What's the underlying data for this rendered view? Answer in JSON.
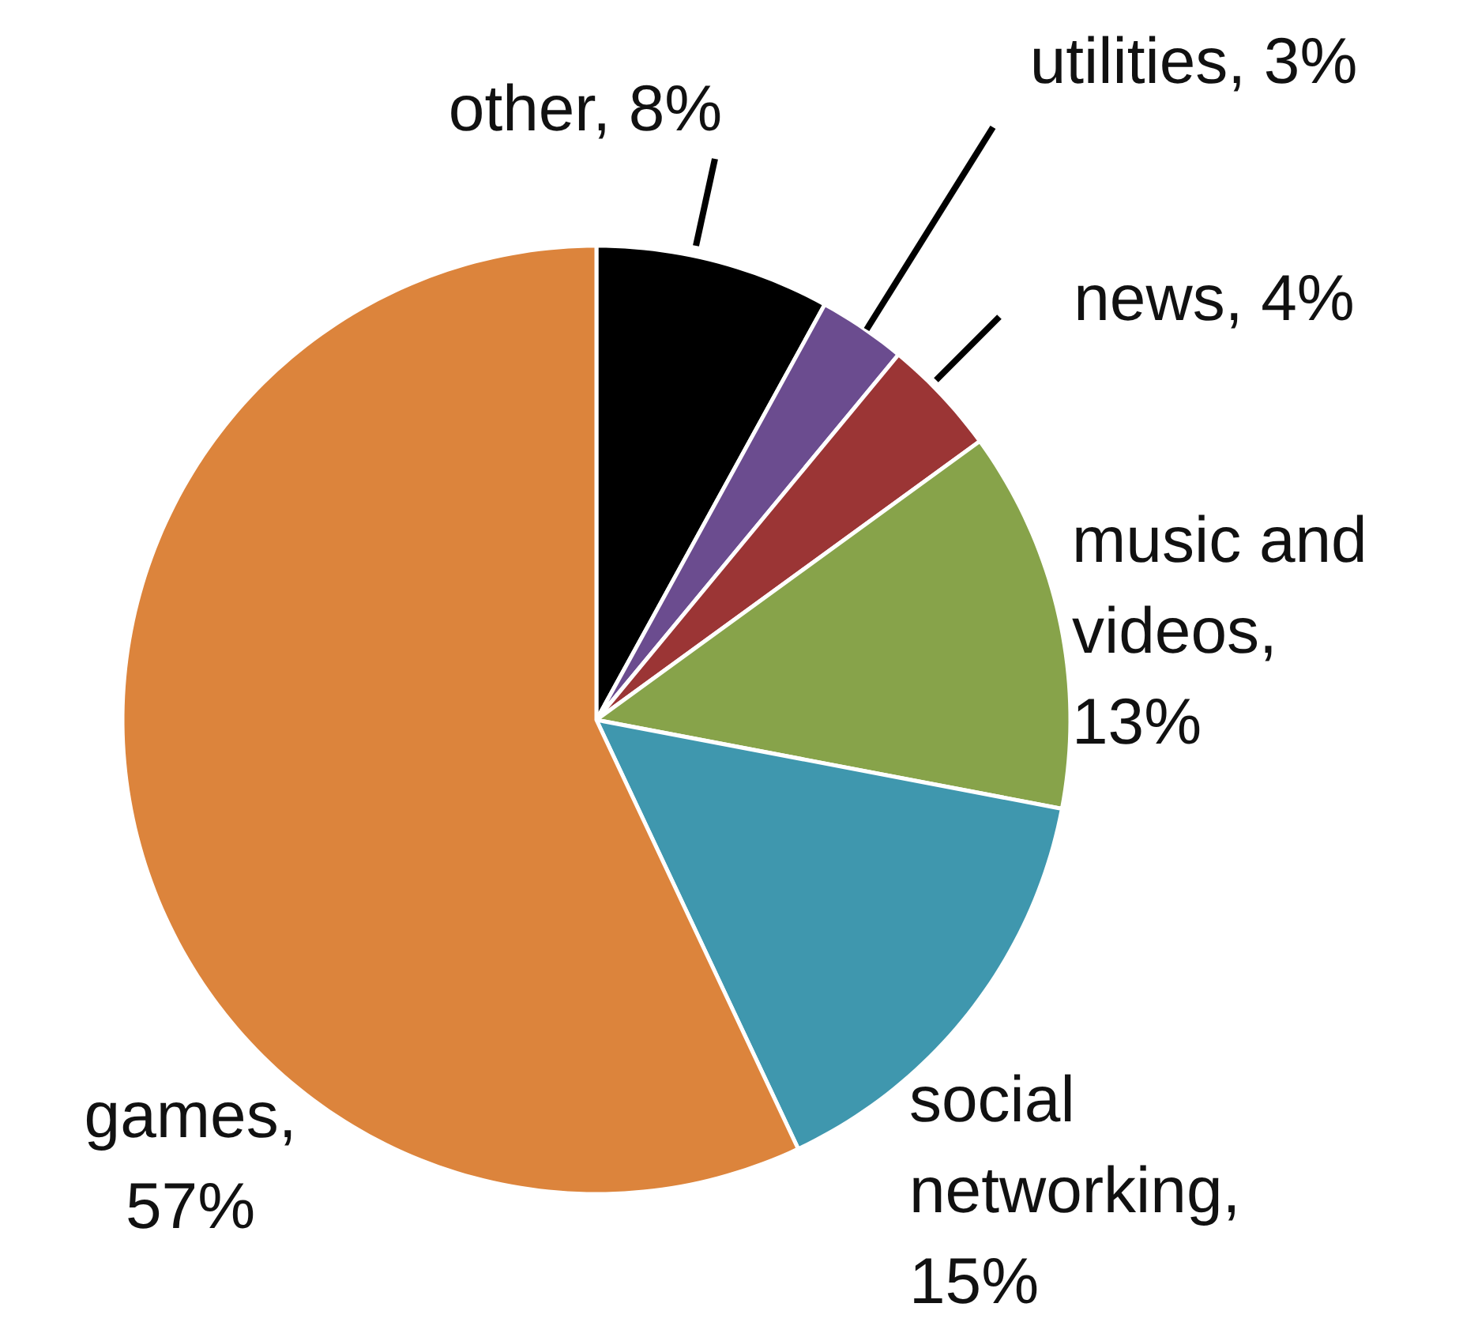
{
  "chart_data": {
    "type": "pie",
    "categories": [
      "other, 8%",
      "utilities, 3%",
      "news, 4%",
      "music and videos, 13%",
      "social networking, 15%",
      "games, 57%"
    ],
    "values": [
      8,
      3,
      4,
      13,
      15,
      57
    ],
    "colors": [
      "#000000",
      "#6b4c8f",
      "#9b3535",
      "#87a34a",
      "#3f97ae",
      "#dc843c"
    ]
  }
}
